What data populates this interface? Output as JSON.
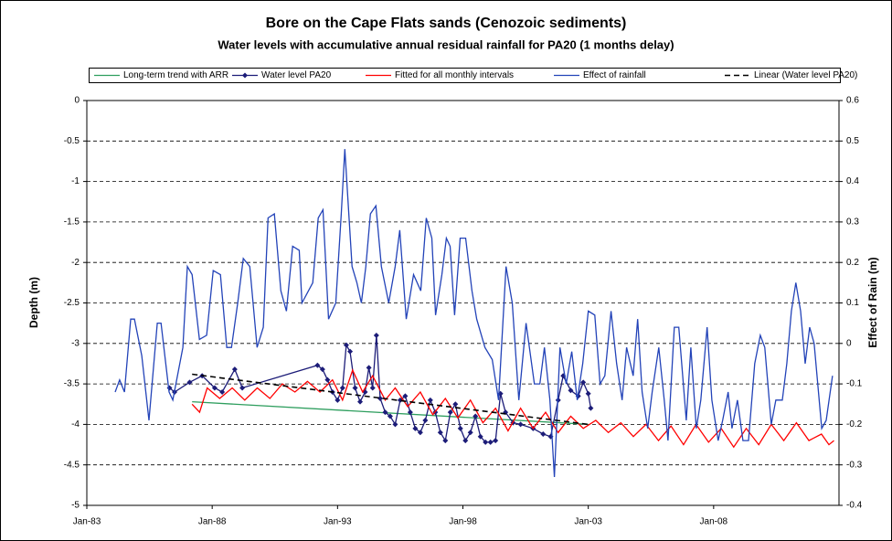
{
  "chart_data": {
    "type": "line",
    "title": "Bore on the Cape Flats sands (Cenozoic sediments)",
    "subtitle": "Water levels with accumulative annual residual rainfall for PA20 (1 months delay)",
    "y_label": "Depth (m)",
    "y2_label": "Effect of Rain (m)",
    "xlim": [
      1983,
      2013
    ],
    "xticks": [
      {
        "value": 1983,
        "label": "Jan-83"
      },
      {
        "value": 1988,
        "label": "Jan-88"
      },
      {
        "value": 1993,
        "label": "Jan-93"
      },
      {
        "value": 1998,
        "label": "Jan-98"
      },
      {
        "value": 2003,
        "label": "Jan-03"
      },
      {
        "value": 2008,
        "label": "Jan-08"
      }
    ],
    "ylim": [
      -5,
      0
    ],
    "yticks": [
      0,
      -0.5,
      -1,
      -1.5,
      -2,
      -2.5,
      -3,
      -3.5,
      -4,
      -4.5,
      -5
    ],
    "y2lim": [
      -0.4,
      0.6
    ],
    "y2ticks": [
      0.6,
      0.5,
      0.4,
      0.3,
      0.2,
      0.1,
      0,
      -0.1,
      -0.2,
      -0.3,
      -0.4
    ],
    "grid": true,
    "legend": "top",
    "series": [
      {
        "name": "Long-term trend with ARR",
        "color": "#2e9e5e",
        "line_style": "solid",
        "x": [
          1987.2,
          2003.0
        ],
        "values": [
          -3.72,
          -4.0
        ]
      },
      {
        "name": "Water level PA20",
        "color": "#1c1c78",
        "line_style": "solid",
        "marker": "diamond",
        "x": [
          1986.3,
          1986.5,
          1987.1,
          1987.6,
          1988.1,
          1988.4,
          1988.9,
          1989.2,
          1992.2,
          1992.4,
          1992.6,
          1992.8,
          1993.0,
          1993.2,
          1993.35,
          1993.5,
          1993.7,
          1993.9,
          1994.1,
          1994.25,
          1994.4,
          1994.55,
          1994.7,
          1994.9,
          1995.1,
          1995.3,
          1995.5,
          1995.7,
          1995.9,
          1996.1,
          1996.3,
          1996.5,
          1996.7,
          1996.9,
          1997.1,
          1997.3,
          1997.5,
          1997.7,
          1997.9,
          1998.1,
          1998.3,
          1998.5,
          1998.7,
          1998.9,
          1999.1,
          1999.3,
          1999.5,
          1999.7,
          2000.0,
          2000.3,
          2000.8,
          2001.2,
          2001.5,
          2001.8,
          2002.0,
          2002.3,
          2002.6,
          2002.8,
          2003.0,
          2003.1
        ],
        "values": [
          -3.55,
          -3.6,
          -3.48,
          -3.4,
          -3.55,
          -3.6,
          -3.32,
          -3.55,
          -3.27,
          -3.32,
          -3.45,
          -3.6,
          -3.7,
          -3.55,
          -3.02,
          -3.1,
          -3.55,
          -3.72,
          -3.6,
          -3.3,
          -3.55,
          -2.9,
          -3.68,
          -3.85,
          -3.9,
          -4.0,
          -3.7,
          -3.65,
          -3.85,
          -4.05,
          -4.1,
          -3.95,
          -3.7,
          -3.85,
          -4.1,
          -4.2,
          -3.85,
          -3.75,
          -4.05,
          -4.2,
          -4.1,
          -3.9,
          -4.15,
          -4.22,
          -4.22,
          -4.2,
          -3.62,
          -3.85,
          -3.98,
          -4.0,
          -4.05,
          -4.12,
          -4.15,
          -3.7,
          -3.4,
          -3.58,
          -3.65,
          -3.48,
          -3.62,
          -3.8
        ]
      },
      {
        "name": "Fitted for all monthly intervals",
        "color": "#ff0000",
        "line_style": "solid",
        "x": [
          1987.2,
          1987.5,
          1987.8,
          1988.3,
          1988.8,
          1989.3,
          1989.8,
          1990.3,
          1990.8,
          1991.3,
          1991.8,
          1992.3,
          1992.8,
          1993.2,
          1993.6,
          1994.0,
          1994.4,
          1994.9,
          1995.3,
          1995.8,
          1996.3,
          1996.8,
          1997.3,
          1997.8,
          1998.3,
          1998.8,
          1999.3,
          1999.8,
          2000.3,
          2000.8,
          2001.3,
          2001.8,
          2002.3,
          2002.8,
          2003.3,
          2003.8,
          2004.3,
          2004.8,
          2005.3,
          2005.8,
          2006.3,
          2006.8,
          2007.3,
          2007.8,
          2008.3,
          2008.8,
          2009.3,
          2009.8,
          2010.3,
          2010.8,
          2011.3,
          2011.8,
          2012.3,
          2012.6,
          2012.8
        ],
        "values": [
          -3.75,
          -3.85,
          -3.55,
          -3.68,
          -3.55,
          -3.7,
          -3.55,
          -3.68,
          -3.5,
          -3.6,
          -3.47,
          -3.6,
          -3.45,
          -3.7,
          -3.33,
          -3.6,
          -3.4,
          -3.7,
          -3.55,
          -3.78,
          -3.6,
          -3.88,
          -3.68,
          -3.92,
          -3.7,
          -3.98,
          -3.8,
          -4.08,
          -3.8,
          -4.05,
          -3.85,
          -4.1,
          -3.9,
          -4.05,
          -3.95,
          -4.1,
          -3.98,
          -4.15,
          -4.0,
          -4.2,
          -4.02,
          -4.25,
          -4.0,
          -4.22,
          -4.05,
          -4.28,
          -4.05,
          -4.25,
          -4.0,
          -4.2,
          -3.98,
          -4.2,
          -4.12,
          -4.25,
          -4.2
        ]
      },
      {
        "name": "Effect of rainfall",
        "color": "#2343b8",
        "line_style": "solid",
        "axis": "y2",
        "x": [
          1984.13,
          1984.31,
          1984.5,
          1984.75,
          1984.9,
          1985.19,
          1985.48,
          1985.81,
          1985.96,
          1986.28,
          1986.43,
          1986.83,
          1987.01,
          1987.2,
          1987.49,
          1987.78,
          1988.04,
          1988.33,
          1988.58,
          1988.77,
          1989.02,
          1989.24,
          1989.5,
          1989.79,
          1990.04,
          1990.23,
          1990.48,
          1990.74,
          1990.96,
          1991.21,
          1991.47,
          1991.58,
          1992.01,
          1992.23,
          1992.42,
          1992.64,
          1992.93,
          1993.15,
          1993.29,
          1993.58,
          1993.77,
          1993.95,
          1994.13,
          1994.31,
          1994.53,
          1994.75,
          1995.04,
          1995.3,
          1995.48,
          1995.74,
          1996.03,
          1996.32,
          1996.54,
          1996.76,
          1996.91,
          1997.16,
          1997.34,
          1997.49,
          1997.67,
          1997.89,
          1998.11,
          1998.36,
          1998.55,
          1998.88,
          1999.17,
          1999.42,
          1999.72,
          1999.97,
          2000.23,
          2000.52,
          2000.85,
          2001.07,
          2001.25,
          2001.47,
          2001.65,
          2001.87,
          2002.12,
          2002.34,
          2002.56,
          2002.78,
          2003.0,
          2003.26,
          2003.47,
          2003.66,
          2003.91,
          2004.13,
          2004.35,
          2004.53,
          2004.79,
          2004.97,
          2005.15,
          2005.37,
          2005.55,
          2005.81,
          2006.03,
          2006.18,
          2006.43,
          2006.61,
          2006.91,
          2007.09,
          2007.31,
          2007.49,
          2007.74,
          2007.93,
          2008.18,
          2008.36,
          2008.58,
          2008.73,
          2008.95,
          2009.17,
          2009.39,
          2009.64,
          2009.86,
          2010.04,
          2010.3,
          2010.48,
          2010.74,
          2010.92,
          2011.1,
          2011.28,
          2011.47,
          2011.65,
          2011.83,
          2012.01,
          2012.31,
          2012.49,
          2012.74
        ],
        "values": [
          -0.12,
          -0.09,
          -0.12,
          0.06,
          0.06,
          -0.03,
          -0.19,
          0.05,
          0.05,
          -0.12,
          -0.14,
          -0.01,
          0.19,
          0.17,
          0.01,
          0.02,
          0.18,
          0.17,
          -0.01,
          -0.01,
          0.1,
          0.21,
          0.19,
          -0.01,
          0.04,
          0.31,
          0.32,
          0.13,
          0.08,
          0.24,
          0.23,
          0.1,
          0.15,
          0.31,
          0.33,
          0.06,
          0.1,
          0.32,
          0.48,
          0.19,
          0.15,
          0.1,
          0.19,
          0.32,
          0.34,
          0.19,
          0.1,
          0.19,
          0.28,
          0.06,
          0.17,
          0.13,
          0.31,
          0.26,
          0.07,
          0.17,
          0.26,
          0.24,
          0.07,
          0.26,
          0.26,
          0.13,
          0.06,
          -0.01,
          -0.04,
          -0.14,
          0.19,
          0.1,
          -0.14,
          0.05,
          -0.1,
          -0.1,
          -0.01,
          -0.14,
          -0.33,
          -0.01,
          -0.1,
          -0.02,
          -0.14,
          -0.05,
          0.08,
          0.07,
          -0.1,
          -0.08,
          0.08,
          -0.05,
          -0.14,
          -0.01,
          -0.08,
          0.06,
          -0.12,
          -0.21,
          -0.12,
          -0.01,
          -0.14,
          -0.24,
          0.04,
          0.04,
          -0.19,
          -0.01,
          -0.21,
          -0.14,
          0.04,
          -0.14,
          -0.24,
          -0.19,
          -0.12,
          -0.21,
          -0.14,
          -0.24,
          -0.24,
          -0.05,
          0.02,
          -0.01,
          -0.2,
          -0.14,
          -0.14,
          -0.05,
          0.08,
          0.15,
          0.08,
          -0.05,
          0.04,
          0.0,
          -0.21,
          -0.19,
          -0.08
        ]
      },
      {
        "name": "Linear (Water level PA20)",
        "color": "#000000",
        "line_style": "dashed",
        "x": [
          1987.2,
          2003.0
        ],
        "values": [
          -3.38,
          -4.0
        ]
      }
    ]
  }
}
